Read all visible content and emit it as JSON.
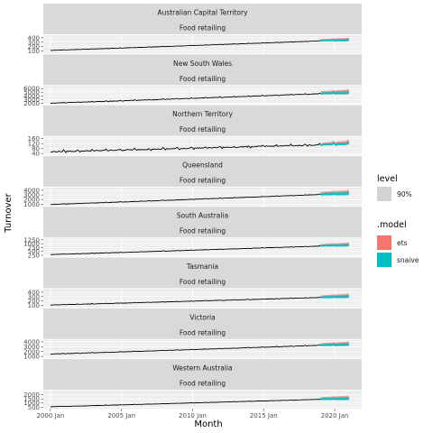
{
  "chart_data": {
    "type": "line",
    "xlabel": "Month",
    "ylabel": "Turnover",
    "x_ticks": [
      "2000 Jan",
      "2005 Jan",
      "2010 Jan",
      "2015 Jan",
      "2020 Jan"
    ],
    "x_tick_years": [
      2000,
      2005,
      2010,
      2015,
      2020
    ],
    "x_range": [
      1999.5,
      2021.9
    ],
    "history_range": [
      2000.0,
      2019.0
    ],
    "forecast_range": [
      2019.0,
      2021.0
    ],
    "industry": "Food retailing",
    "legend": {
      "level_title": "level",
      "level_items": [
        "90%"
      ],
      "level_color": "#d3d3d3",
      "model_title": ".model",
      "models": [
        {
          "name": "ets",
          "color": "#F8766D"
        },
        {
          "name": "snaive",
          "color": "#00BFC4"
        }
      ]
    },
    "panels": [
      {
        "state": "Australian Capital Territory",
        "ylim": [
          50,
          460
        ],
        "ticks": [
          100,
          200,
          300,
          400
        ],
        "start": 115,
        "end": 330,
        "noise": 5,
        "ets_forecast": [
          335,
          350
        ],
        "snaive_forecast": [
          335,
          340
        ],
        "band_halfwidth": 40
      },
      {
        "state": "New South Wales",
        "ylim": [
          1800,
          6700
        ],
        "ticks": [
          2000,
          3000,
          4000,
          5000,
          6000
        ],
        "start": 2050,
        "end": 4600,
        "noise": 120,
        "ets_forecast": [
          4700,
          4950
        ],
        "snaive_forecast": [
          4650,
          4700
        ],
        "band_halfwidth": 600
      },
      {
        "state": "Northern Territory",
        "ylim": [
          30,
          175
        ],
        "ticks": [
          40,
          80,
          120,
          160
        ],
        "start": 55,
        "end": 110,
        "noise": 8,
        "ets_forecast": [
          112,
          125
        ],
        "snaive_forecast": [
          110,
          115
        ],
        "band_halfwidth": 15
      },
      {
        "state": "Queensland",
        "ylim": [
          700,
          4600
        ],
        "ticks": [
          1000,
          2000,
          3000,
          4000
        ],
        "start": 950,
        "end": 3100,
        "noise": 60,
        "ets_forecast": [
          3200,
          3400
        ],
        "snaive_forecast": [
          3100,
          3200
        ],
        "band_halfwidth": 500
      },
      {
        "state": "South Australia",
        "ylim": [
          180,
          1350
        ],
        "ticks": [
          250,
          500,
          750,
          1000,
          1250
        ],
        "start": 300,
        "end": 850,
        "noise": 15,
        "ets_forecast": [
          870,
          920
        ],
        "snaive_forecast": [
          860,
          880
        ],
        "band_halfwidth": 120
      },
      {
        "state": "Tasmania",
        "ylim": [
          60,
          470
        ],
        "ticks": [
          100,
          200,
          300,
          400
        ],
        "start": 110,
        "end": 280,
        "noise": 6,
        "ets_forecast": [
          285,
          310
        ],
        "snaive_forecast": [
          280,
          290
        ],
        "band_halfwidth": 45
      },
      {
        "state": "Victoria",
        "ylim": [
          700,
          4400
        ],
        "ticks": [
          1000,
          2000,
          3000,
          4000
        ],
        "start": 1500,
        "end": 3300,
        "noise": 60,
        "ets_forecast": [
          3350,
          3500
        ],
        "snaive_forecast": [
          3300,
          3350
        ],
        "band_halfwidth": 420
      },
      {
        "state": "Western Australia",
        "ylim": [
          300,
          2500
        ],
        "ticks": [
          500,
          1000,
          1500,
          2000
        ],
        "start": 550,
        "end": 1450,
        "noise": 25,
        "ets_forecast": [
          1480,
          1560
        ],
        "snaive_forecast": [
          1460,
          1480
        ],
        "band_halfwidth": 250
      }
    ]
  }
}
